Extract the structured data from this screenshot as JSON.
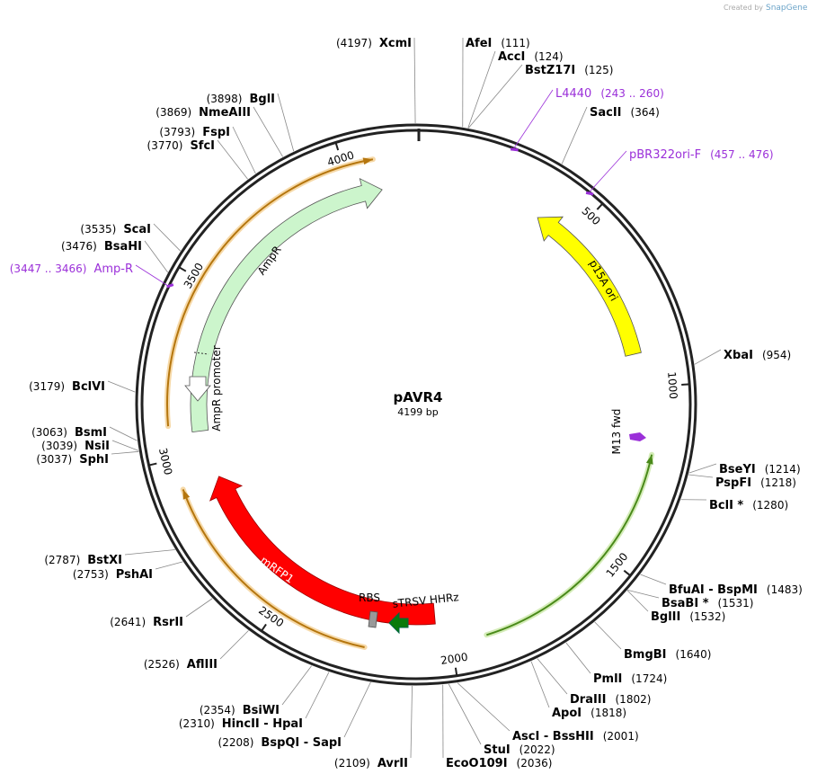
{
  "credit": "Created by",
  "brand": "SnapGene",
  "plasmid": {
    "name": "pAVR4",
    "size": "4199 bp"
  },
  "ticks": [
    500,
    1000,
    1500,
    2000,
    2500,
    3000,
    3500,
    4000
  ],
  "sites": [
    {
      "name": "XcmI",
      "pos": "(4197)"
    },
    {
      "name": "AfeI",
      "pos": "(111)"
    },
    {
      "name": "AccI",
      "pos": "(124)"
    },
    {
      "name": "BstZ17I",
      "pos": "(125)"
    },
    {
      "name": "SacII",
      "pos": "(364)"
    },
    {
      "name": "XbaI",
      "pos": "(954)"
    },
    {
      "name": "BseYI",
      "pos": "(1214)"
    },
    {
      "name": "PspFI",
      "pos": "(1218)"
    },
    {
      "name": "BclI *",
      "pos": "(1280)"
    },
    {
      "name": "BfuAI - BspMI",
      "pos": "(1483)"
    },
    {
      "name": "BsaBI *",
      "pos": "(1531)"
    },
    {
      "name": "BglII",
      "pos": "(1532)"
    },
    {
      "name": "BmgBI",
      "pos": "(1640)"
    },
    {
      "name": "PmlI",
      "pos": "(1724)"
    },
    {
      "name": "DraIII",
      "pos": "(1802)"
    },
    {
      "name": "ApoI",
      "pos": "(1818)"
    },
    {
      "name": "AscI - BssHII",
      "pos": "(2001)"
    },
    {
      "name": "StuI",
      "pos": "(2022)"
    },
    {
      "name": "EcoO109I",
      "pos": "(2036)"
    },
    {
      "name": "AvrII",
      "pos": "(2109)"
    },
    {
      "name": "BspQI - SapI",
      "pos": "(2208)"
    },
    {
      "name": "HincII - HpaI",
      "pos": "(2310)"
    },
    {
      "name": "BsiWI",
      "pos": "(2354)"
    },
    {
      "name": "AflIII",
      "pos": "(2526)"
    },
    {
      "name": "RsrII",
      "pos": "(2641)"
    },
    {
      "name": "PshAI",
      "pos": "(2753)"
    },
    {
      "name": "BstXI",
      "pos": "(2787)"
    },
    {
      "name": "SphI",
      "pos": "(3037)"
    },
    {
      "name": "NsiI",
      "pos": "(3039)"
    },
    {
      "name": "BsmI",
      "pos": "(3063)"
    },
    {
      "name": "BclVI",
      "pos": "(3179)"
    },
    {
      "name": "BsaHI",
      "pos": "(3476)"
    },
    {
      "name": "ScaI",
      "pos": "(3535)"
    },
    {
      "name": "SfcI",
      "pos": "(3770)"
    },
    {
      "name": "FspI",
      "pos": "(3793)"
    },
    {
      "name": "NmeAIII",
      "pos": "(3869)"
    },
    {
      "name": "BglI",
      "pos": "(3898)"
    }
  ],
  "primers": [
    {
      "name": "L4440",
      "range": "(243 .. 260)"
    },
    {
      "name": "pBR322ori-F",
      "range": "(457 .. 476)"
    },
    {
      "name": "Amp-R",
      "range": "(3447 .. 3466)"
    }
  ],
  "features": {
    "ampr": "AmpR",
    "ampr_promoter": "AmpR promoter",
    "ori": "p15A ori",
    "m13": "M13 fwd",
    "mrfp": "mRFP1",
    "rbs": "RBS",
    "hhrz": "sTRSV HHRz"
  }
}
